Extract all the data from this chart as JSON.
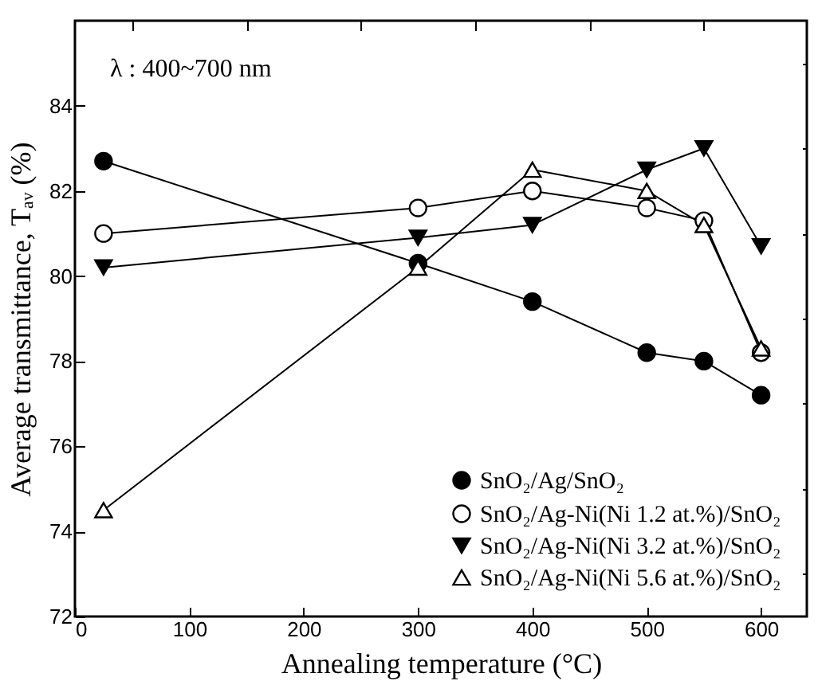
{
  "chart_data": {
    "type": "line",
    "xlabel": "Annealing temperature (°C)",
    "ylabel": "Average transmittance, Tₐᵥ (%)",
    "annotations": [
      "λ : 400~700 nm"
    ],
    "xlim": [
      0,
      640
    ],
    "ylim": [
      72,
      86
    ],
    "xticks": [
      0,
      {
        "value": 50,
        "label": null
      },
      100,
      {
        "value": 150,
        "label": null
      },
      200,
      {
        "value": 250,
        "label": null
      },
      300,
      {
        "value": 350,
        "label": null
      },
      400,
      {
        "value": 450,
        "label": null
      },
      500,
      {
        "value": 550,
        "label": null
      },
      600
    ],
    "yticks": [
      72,
      {
        "value": 73,
        "label": null
      },
      74,
      {
        "value": 75,
        "label": null
      },
      76,
      {
        "value": 77,
        "label": null
      },
      78,
      {
        "value": 79,
        "label": null
      },
      80,
      {
        "value": 81,
        "label": null
      },
      82,
      {
        "value": 83,
        "label": null
      },
      84,
      {
        "value": 85,
        "label": null
      }
    ],
    "grid": false,
    "legend": "bottom right",
    "line_style": "solid",
    "series": [
      {
        "name": "SnO₂/Ag/SnO₂",
        "color": "#000000",
        "marker": "circle",
        "x": [
          25,
          300,
          400,
          500,
          550,
          600
        ],
        "values": [
          82.7,
          80.3,
          79.4,
          78.2,
          78.0,
          77.2
        ]
      },
      {
        "name": "SnO₂/Ag-Ni(Ni 1.2 at.%)/SnO₂",
        "color": "#000000",
        "marker": "circle-open",
        "x": [
          25,
          300,
          400,
          500,
          550,
          600
        ],
        "values": [
          81.0,
          81.6,
          82.0,
          81.6,
          81.3,
          78.2
        ]
      },
      {
        "name": "SnO₂/Ag-Ni(Ni 3.2 at.%)/SnO₂",
        "color": "#000000",
        "marker": "triangle-down",
        "x": [
          25,
          300,
          400,
          500,
          550,
          600
        ],
        "values": [
          80.2,
          80.9,
          81.2,
          82.5,
          83.0,
          80.7
        ]
      },
      {
        "name": "SnO₂/Ag-Ni(Ni 5.6 at.%)/SnO₂",
        "color": "#000000",
        "marker": "triangle-open",
        "x": [
          25,
          300,
          400,
          500,
          550,
          600
        ],
        "values": [
          74.5,
          80.2,
          82.5,
          82.0,
          81.2,
          78.3
        ]
      }
    ]
  }
}
